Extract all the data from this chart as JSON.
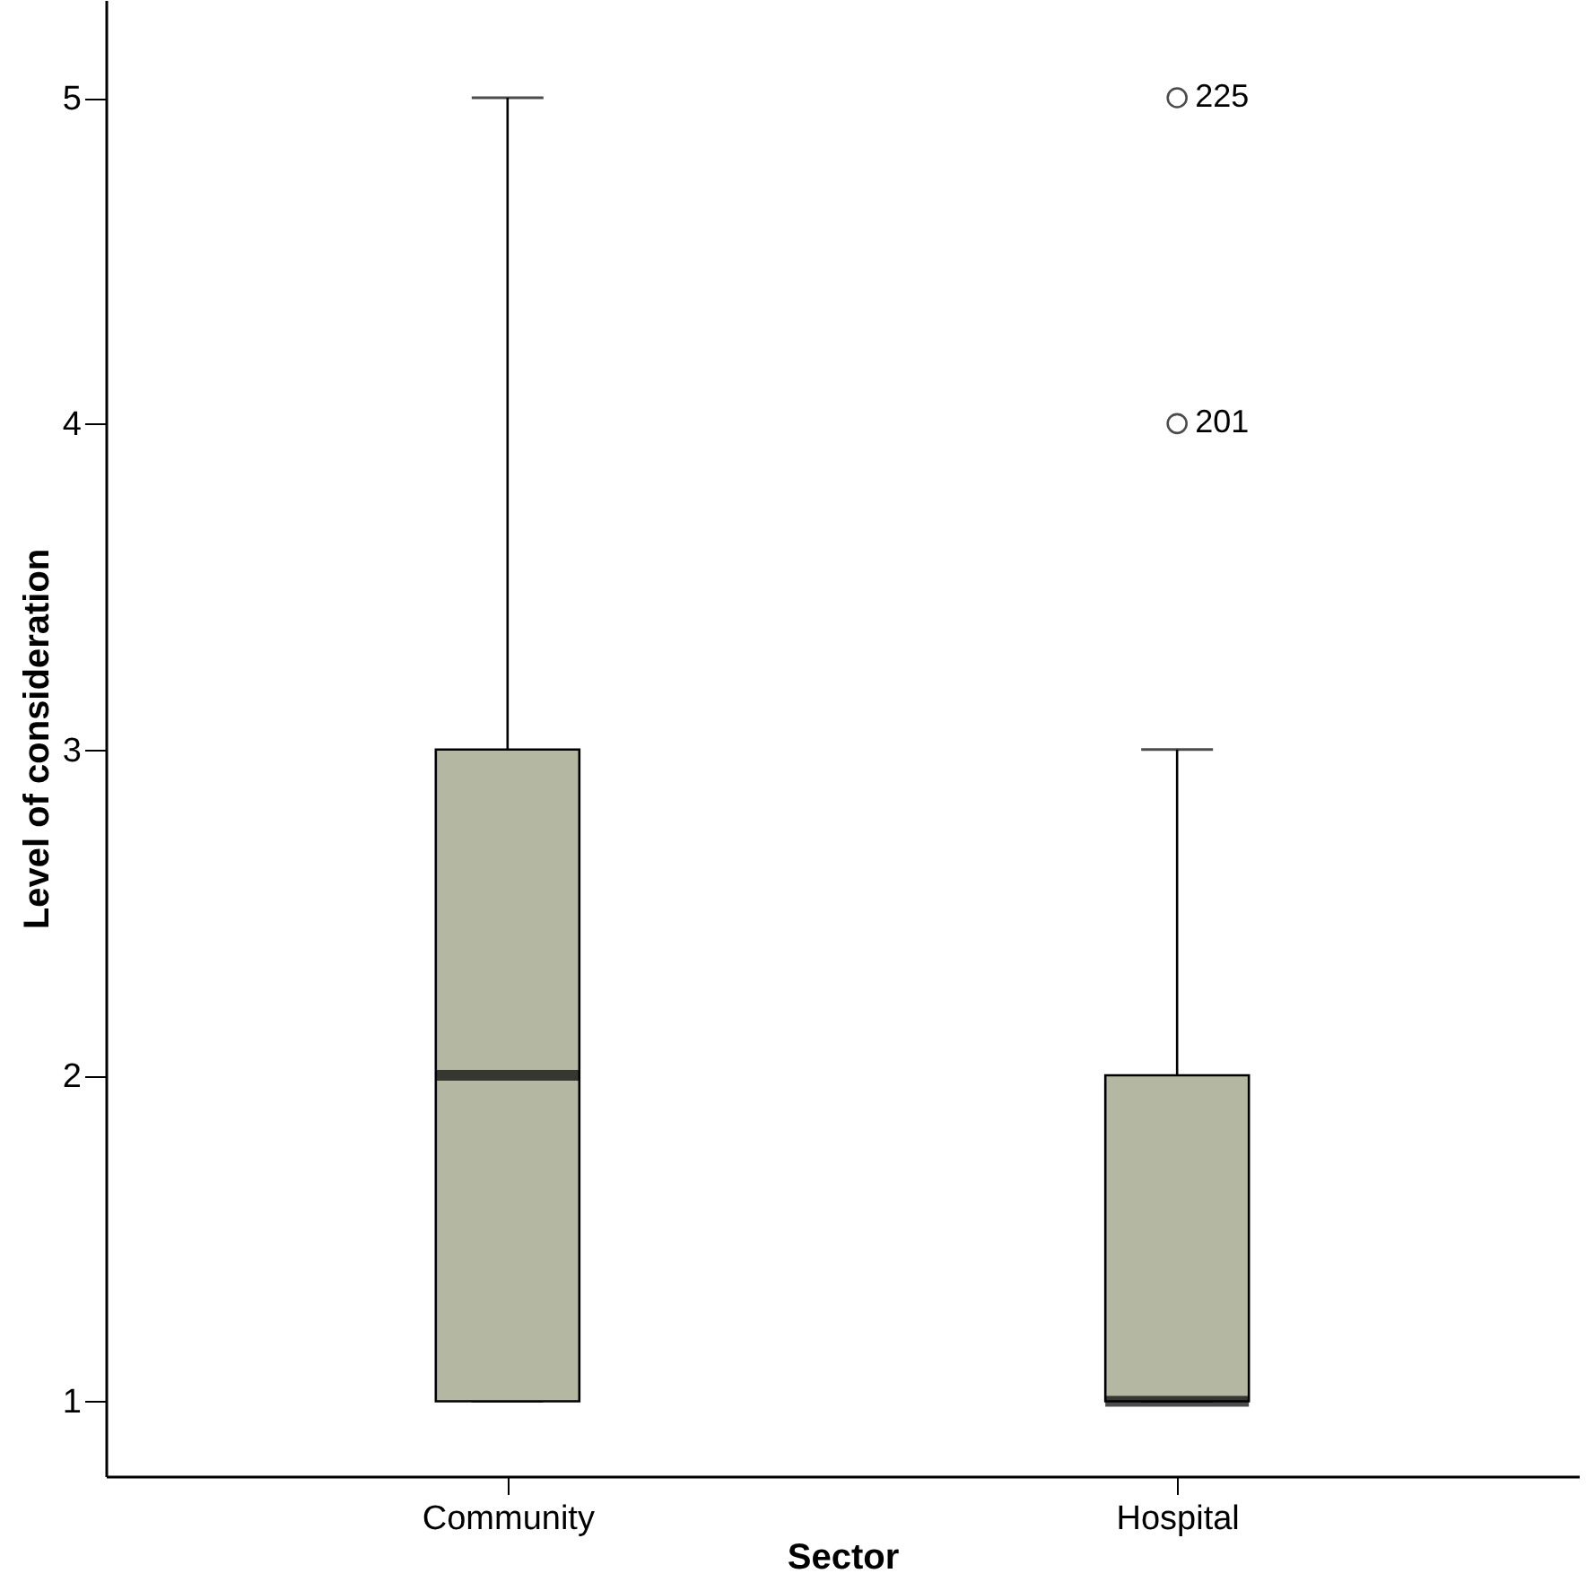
{
  "chart_data": {
    "type": "box",
    "xlabel": "Sector",
    "ylabel": "Level of consideration",
    "categories": [
      "Community",
      "Hospital"
    ],
    "color": "#b4b8a2",
    "boxes": [
      {
        "low": 1,
        "q1": 1,
        "median": 2,
        "q3": 3,
        "high": 5
      },
      {
        "low": 1,
        "q1": 1,
        "median": 1,
        "q3": 2,
        "high": 3,
        "outliers": [
          5,
          4
        ]
      }
    ],
    "ylim": [
      0.77,
      5.3
    ],
    "yticks": [
      1,
      2,
      3,
      4,
      5
    ],
    "annotations": [
      "225",
      "201"
    ]
  }
}
